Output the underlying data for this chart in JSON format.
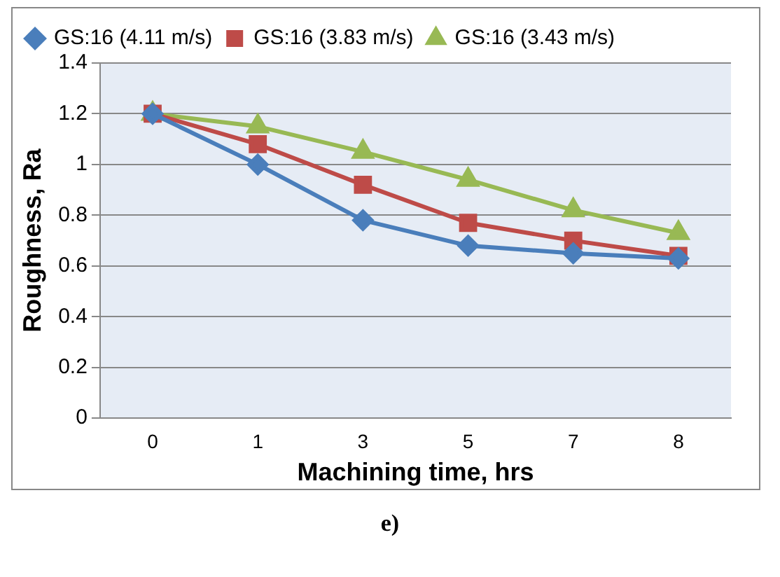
{
  "chart_data": {
    "type": "line",
    "xlabel": "Machining time, hrs",
    "ylabel": "Roughness, Ra",
    "categories": [
      "0",
      "1",
      "3",
      "5",
      "7",
      "8"
    ],
    "series": [
      {
        "name": "GS:16 (4.11 m/s)",
        "color": "#4a7ebb",
        "marker": "diamond",
        "values": [
          1.2,
          1.0,
          0.78,
          0.68,
          0.65,
          0.63
        ]
      },
      {
        "name": "GS:16 (3.83 m/s)",
        "color": "#be4b48",
        "marker": "square",
        "values": [
          1.2,
          1.08,
          0.92,
          0.77,
          0.7,
          0.64
        ]
      },
      {
        "name": "GS:16 (3.43 m/s)",
        "color": "#98b954",
        "marker": "triangle",
        "values": [
          1.2,
          1.15,
          1.05,
          0.94,
          0.82,
          0.73
        ]
      }
    ],
    "ylim": [
      0,
      1.4
    ],
    "yticks": [
      0,
      0.2,
      0.4,
      0.6,
      0.8,
      1,
      1.2,
      1.4
    ],
    "grid": "y",
    "legend": "top",
    "line_style": "solid",
    "annotations": [
      "e)"
    ]
  }
}
